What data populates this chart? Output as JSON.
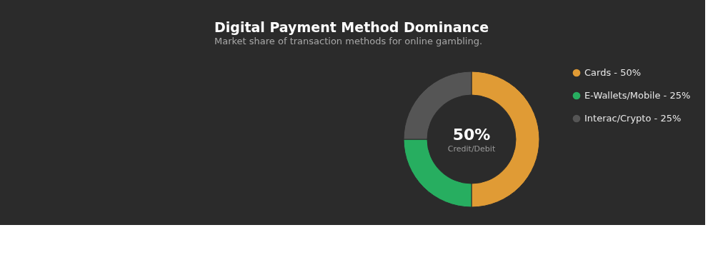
{
  "chart_data": {
    "type": "donut",
    "title": "Digital Payment Method Dominance",
    "subtitle": "Market share of transaction methods for online gambling.",
    "categories": [
      "Cards - 50%",
      "E-Wallets/Mobile - 25%",
      "Interac/Crypto - 25%"
    ],
    "values": [
      50,
      25,
      25
    ],
    "colors": [
      "#e09b35",
      "#27ae60",
      "#555555"
    ],
    "annotations": [
      "50%",
      "Credit/Debit"
    ],
    "legend": "right"
  }
}
